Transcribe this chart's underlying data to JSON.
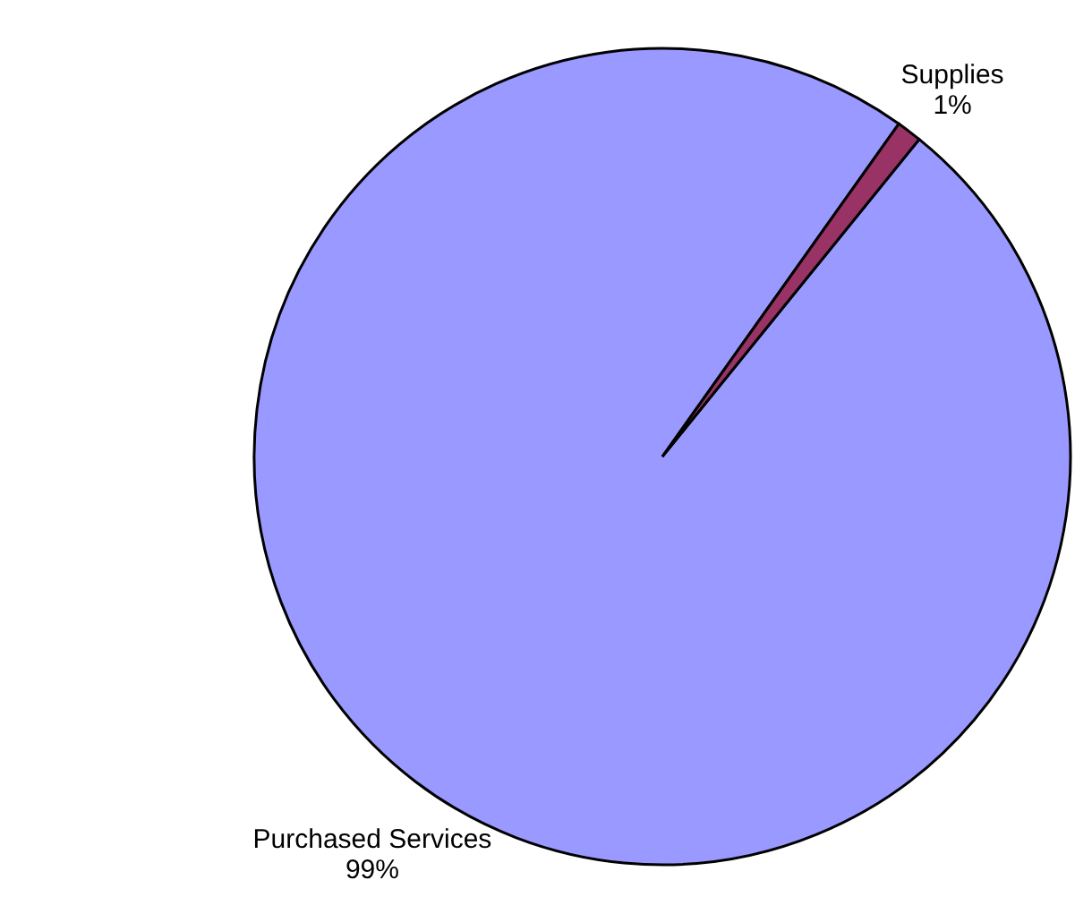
{
  "chart_data": {
    "type": "pie",
    "categories": [
      "Purchased Services",
      "Supplies"
    ],
    "values": [
      99,
      1
    ],
    "colors": [
      "#9999ff",
      "#993366"
    ],
    "value_labels": [
      "99%",
      "1%"
    ]
  }
}
